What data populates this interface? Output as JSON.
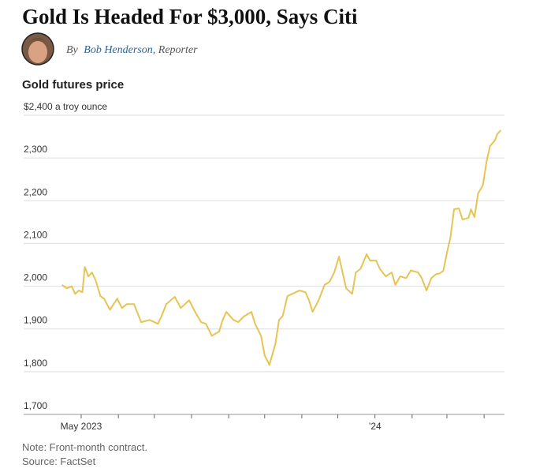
{
  "headline": "Gold Is Headed For $3,000, Says Citi",
  "byline": {
    "prefix": "By",
    "author": "Bob Henderson",
    "role": ", Reporter"
  },
  "chart_data": {
    "type": "line",
    "title": "Gold futures price",
    "color": "#e6c453",
    "x": [
      "2023-04-15",
      "2023-04-19",
      "2023-04-23",
      "2023-04-26",
      "2023-04-29",
      "2023-05-02",
      "2023-05-04",
      "2023-05-07",
      "2023-05-10",
      "2023-05-13",
      "2023-05-17",
      "2023-05-20",
      "2023-05-25",
      "2023-05-31",
      "2023-06-04",
      "2023-06-08",
      "2023-06-14",
      "2023-06-20",
      "2023-06-27",
      "2023-07-04",
      "2023-07-07",
      "2023-07-11",
      "2023-07-18",
      "2023-07-23",
      "2023-07-30",
      "2023-08-04",
      "2023-08-09",
      "2023-08-13",
      "2023-08-18",
      "2023-08-24",
      "2023-08-27",
      "2023-08-30",
      "2023-09-05",
      "2023-09-09",
      "2023-09-14",
      "2023-09-20",
      "2023-09-23",
      "2023-09-28",
      "2023-10-01",
      "2023-10-05",
      "2023-10-10",
      "2023-10-13",
      "2023-10-16",
      "2023-10-20",
      "2023-10-24",
      "2023-10-30",
      "2023-11-04",
      "2023-11-07",
      "2023-11-10",
      "2023-11-15",
      "2023-11-20",
      "2023-11-24",
      "2023-11-28",
      "2023-12-02",
      "2023-12-05",
      "2023-12-08",
      "2023-12-13",
      "2023-12-16",
      "2023-12-20",
      "2023-12-25",
      "2023-12-28",
      "2024-01-02",
      "2024-01-05",
      "2024-01-10",
      "2024-01-15",
      "2024-01-18",
      "2024-01-22",
      "2024-01-27",
      "2024-01-31",
      "2024-02-06",
      "2024-02-09",
      "2024-02-13",
      "2024-02-17",
      "2024-02-21",
      "2024-02-24",
      "2024-02-27",
      "2024-03-01",
      "2024-03-04",
      "2024-03-07",
      "2024-03-11",
      "2024-03-14",
      "2024-03-19",
      "2024-03-21",
      "2024-03-24",
      "2024-03-27",
      "2024-03-31",
      "2024-04-03",
      "2024-04-06",
      "2024-04-10",
      "2024-04-12",
      "2024-04-15"
    ],
    "values": [
      2003,
      1995,
      2000,
      1982,
      1990,
      1986,
      2045,
      2023,
      2032,
      2014,
      1977,
      1971,
      1945,
      1971,
      1949,
      1958,
      1958,
      1916,
      1921,
      1912,
      1930,
      1958,
      1975,
      1949,
      1967,
      1940,
      1916,
      1912,
      1884,
      1894,
      1921,
      1940,
      1921,
      1916,
      1930,
      1940,
      1912,
      1884,
      1838,
      1816,
      1866,
      1921,
      1930,
      1977,
      1982,
      1990,
      1986,
      1967,
      1940,
      1967,
      2003,
      2010,
      2032,
      2069,
      2032,
      1995,
      1982,
      2032,
      2041,
      2075,
      2060,
      2060,
      2041,
      2023,
      2032,
      2003,
      2023,
      2019,
      2037,
      2032,
      2019,
      1990,
      2019,
      2028,
      2030,
      2036,
      2078,
      2115,
      2180,
      2182,
      2156,
      2160,
      2180,
      2162,
      2217,
      2236,
      2291,
      2328,
      2341,
      2356,
      2365
    ],
    "xlim": [
      "2023-03-14",
      "2024-04-18"
    ],
    "xticks": [
      {
        "value": "2023-05-01",
        "label": "May 2023"
      },
      {
        "value": "2024-01-01",
        "label": "’24"
      }
    ],
    "xminor_ticks": [
      "2023-06-01",
      "2023-07-01",
      "2023-08-01",
      "2023-09-01",
      "2023-10-01",
      "2023-11-01",
      "2023-12-01",
      "2024-02-01",
      "2024-03-01",
      "2024-04-01"
    ],
    "ylim": [
      1700,
      2400
    ],
    "yticks": [
      {
        "value": 1700,
        "label": "1,700"
      },
      {
        "value": 1800,
        "label": "1,800"
      },
      {
        "value": 1900,
        "label": "1,900"
      },
      {
        "value": 2000,
        "label": "2,000"
      },
      {
        "value": 2100,
        "label": "2,100"
      },
      {
        "value": 2200,
        "label": "2,200"
      },
      {
        "value": 2300,
        "label": "2,300"
      },
      {
        "value": 2400,
        "label": "$2,400 a troy ounce"
      }
    ],
    "grid": true,
    "note": "Note: Front-month contract.",
    "source": "Source: FactSet"
  }
}
